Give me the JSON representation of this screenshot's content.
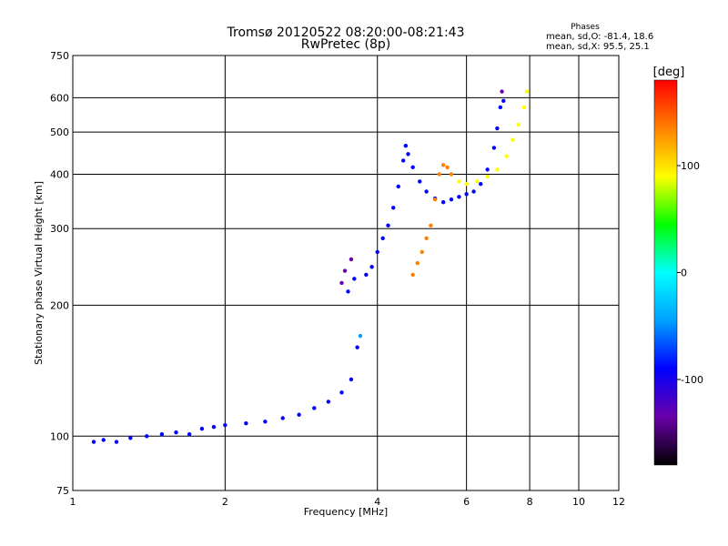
{
  "chart_data": {
    "type": "scatter",
    "title": "Tromsø 20120522 08:20:00-08:21:43",
    "subtitle": "RwPretec (8p)",
    "xlabel": "Frequency [MHz]",
    "ylabel": "Stationary phase Virtual Height [km]",
    "x_scale": "log",
    "y_scale": "log",
    "xlim": [
      1,
      12
    ],
    "ylim": [
      75,
      750
    ],
    "x_ticks": [
      1,
      2,
      4,
      6,
      8,
      10,
      12
    ],
    "y_ticks": [
      75,
      100,
      200,
      300,
      400,
      500,
      600,
      750
    ],
    "grid": true,
    "phases_info": {
      "title": "Phases",
      "line1": "mean, sd,O: -81.4, 18.6",
      "line2": "mean, sd,X:  95.5, 25.1"
    },
    "colorbar": {
      "label": "[deg]",
      "ticks": [
        100,
        0,
        -100
      ],
      "range": [
        -180,
        180
      ],
      "colors": [
        "#000000",
        "#6a00a8",
        "#0000ff",
        "#00a0ff",
        "#00ffff",
        "#00ff00",
        "#ffff00",
        "#ff8000",
        "#ff0000"
      ]
    },
    "series": [
      {
        "values": [
          {
            "x": 1.1,
            "y": 97,
            "c": -90
          },
          {
            "x": 1.15,
            "y": 98,
            "c": -105
          },
          {
            "x": 1.22,
            "y": 97,
            "c": -100
          },
          {
            "x": 1.3,
            "y": 99,
            "c": -90
          },
          {
            "x": 1.4,
            "y": 100,
            "c": -95
          },
          {
            "x": 1.5,
            "y": 101,
            "c": -100
          },
          {
            "x": 1.6,
            "y": 102,
            "c": -90
          },
          {
            "x": 1.7,
            "y": 101,
            "c": -95
          },
          {
            "x": 1.8,
            "y": 104,
            "c": -110
          },
          {
            "x": 1.9,
            "y": 105,
            "c": -90
          },
          {
            "x": 2.0,
            "y": 106,
            "c": -100
          },
          {
            "x": 2.2,
            "y": 107,
            "c": -95
          },
          {
            "x": 2.4,
            "y": 108,
            "c": -100
          },
          {
            "x": 2.6,
            "y": 110,
            "c": -90
          },
          {
            "x": 2.8,
            "y": 112,
            "c": -105
          },
          {
            "x": 3.0,
            "y": 116,
            "c": -95
          },
          {
            "x": 3.2,
            "y": 120,
            "c": -110
          },
          {
            "x": 3.4,
            "y": 126,
            "c": -100
          },
          {
            "x": 3.55,
            "y": 135,
            "c": -90
          },
          {
            "x": 3.65,
            "y": 160,
            "c": -70
          },
          {
            "x": 3.7,
            "y": 170,
            "c": -60
          },
          {
            "x": 3.5,
            "y": 215,
            "c": -110
          },
          {
            "x": 3.4,
            "y": 225,
            "c": -115
          },
          {
            "x": 3.45,
            "y": 240,
            "c": -120
          },
          {
            "x": 3.55,
            "y": 255,
            "c": -125
          },
          {
            "x": 3.6,
            "y": 230,
            "c": -105
          },
          {
            "x": 3.8,
            "y": 235,
            "c": -95
          },
          {
            "x": 3.9,
            "y": 245,
            "c": -90
          },
          {
            "x": 4.0,
            "y": 265,
            "c": -85
          },
          {
            "x": 4.1,
            "y": 285,
            "c": -80
          },
          {
            "x": 4.2,
            "y": 305,
            "c": -80
          },
          {
            "x": 4.3,
            "y": 335,
            "c": -75
          },
          {
            "x": 4.4,
            "y": 375,
            "c": -75
          },
          {
            "x": 4.5,
            "y": 430,
            "c": -80
          },
          {
            "x": 4.55,
            "y": 465,
            "c": -95
          },
          {
            "x": 4.6,
            "y": 445,
            "c": -90
          },
          {
            "x": 4.7,
            "y": 415,
            "c": -85
          },
          {
            "x": 4.85,
            "y": 385,
            "c": -85
          },
          {
            "x": 5.0,
            "y": 365,
            "c": -90
          },
          {
            "x": 5.2,
            "y": 352,
            "c": -85
          },
          {
            "x": 5.4,
            "y": 345,
            "c": -90
          },
          {
            "x": 5.6,
            "y": 350,
            "c": -85
          },
          {
            "x": 5.8,
            "y": 355,
            "c": -90
          },
          {
            "x": 6.0,
            "y": 360,
            "c": -95
          },
          {
            "x": 6.2,
            "y": 365,
            "c": -100
          },
          {
            "x": 6.4,
            "y": 380,
            "c": -100
          },
          {
            "x": 6.6,
            "y": 410,
            "c": -110
          },
          {
            "x": 6.8,
            "y": 460,
            "c": -110
          },
          {
            "x": 6.9,
            "y": 510,
            "c": -110
          },
          {
            "x": 7.0,
            "y": 570,
            "c": -110
          },
          {
            "x": 7.05,
            "y": 620,
            "c": -115
          },
          {
            "x": 7.1,
            "y": 590,
            "c": -100
          }
        ]
      },
      {
        "values": [
          {
            "x": 4.7,
            "y": 235,
            "c": 140
          },
          {
            "x": 4.8,
            "y": 250,
            "c": 135
          },
          {
            "x": 4.9,
            "y": 265,
            "c": 140
          },
          {
            "x": 5.0,
            "y": 285,
            "c": 135
          },
          {
            "x": 5.1,
            "y": 305,
            "c": 130
          },
          {
            "x": 5.2,
            "y": 350,
            "c": 125
          },
          {
            "x": 5.3,
            "y": 400,
            "c": 130
          },
          {
            "x": 5.4,
            "y": 420,
            "c": 135
          },
          {
            "x": 5.5,
            "y": 415,
            "c": 130
          },
          {
            "x": 5.6,
            "y": 400,
            "c": 120
          },
          {
            "x": 5.8,
            "y": 385,
            "c": 110
          },
          {
            "x": 6.0,
            "y": 380,
            "c": 105
          },
          {
            "x": 6.3,
            "y": 385,
            "c": 100
          },
          {
            "x": 6.6,
            "y": 395,
            "c": 95
          },
          {
            "x": 6.9,
            "y": 410,
            "c": 95
          },
          {
            "x": 7.2,
            "y": 440,
            "c": 90
          },
          {
            "x": 7.4,
            "y": 480,
            "c": 85
          },
          {
            "x": 7.6,
            "y": 520,
            "c": 80
          },
          {
            "x": 7.8,
            "y": 570,
            "c": 75
          },
          {
            "x": 7.9,
            "y": 620,
            "c": 85
          }
        ]
      }
    ]
  }
}
